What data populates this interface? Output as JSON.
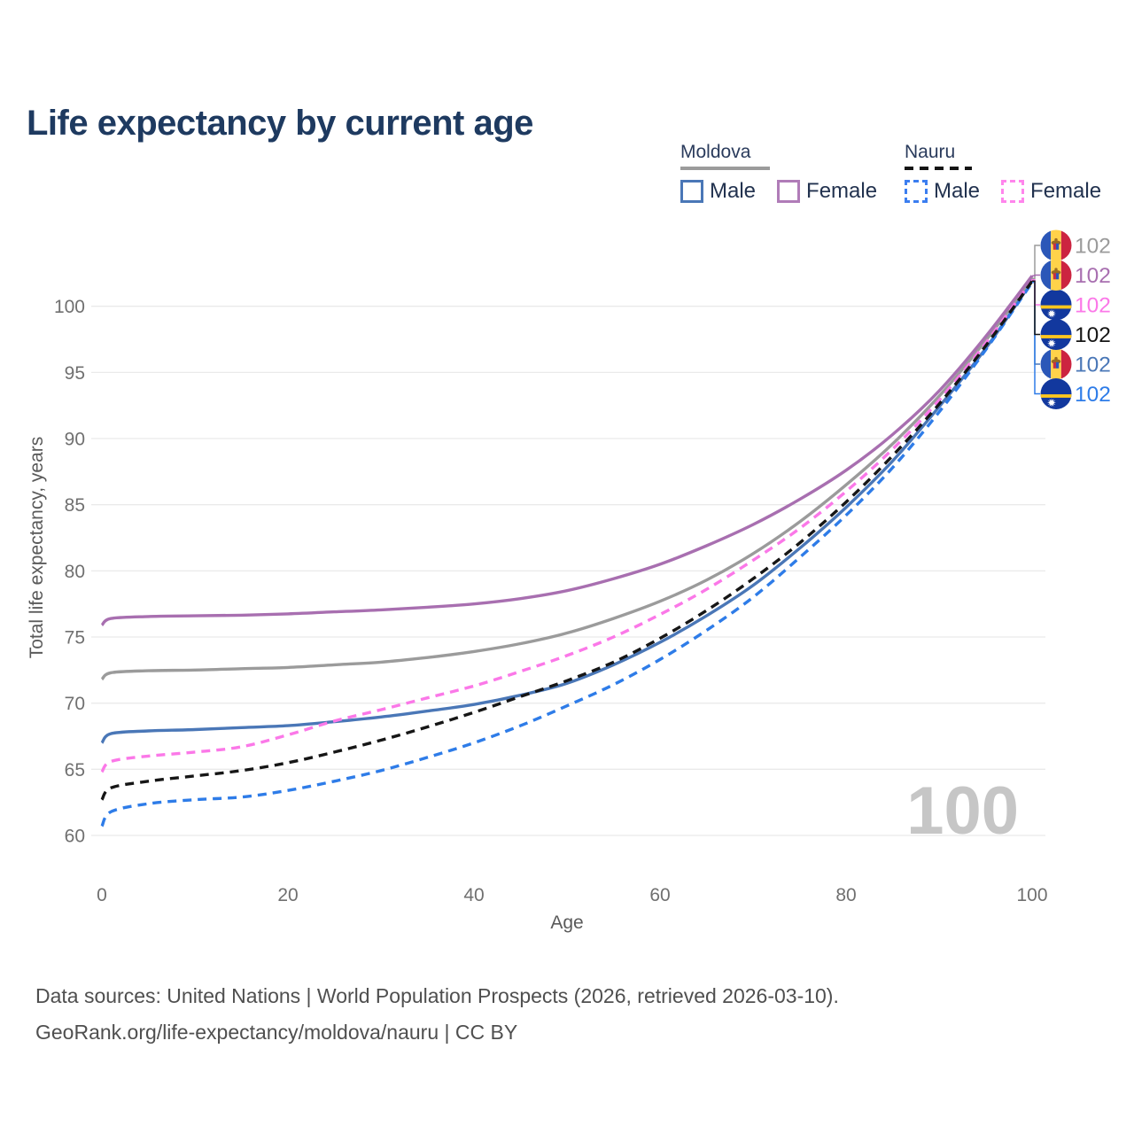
{
  "title": "Life expectancy by current age",
  "legend": {
    "groups": [
      {
        "country": "Moldova",
        "style": "solid",
        "items": [
          {
            "label": "Male",
            "color": "#4a77b7"
          },
          {
            "label": "Female",
            "color": "#b07cb8"
          }
        ]
      },
      {
        "country": "Nauru",
        "style": "dashed",
        "items": [
          {
            "label": "Male",
            "color": "#3b7ef0"
          },
          {
            "label": "Female",
            "color": "#ff85ec"
          }
        ]
      }
    ]
  },
  "footer": {
    "line1": "Data sources: United Nations | World Population Prospects (2026, retrieved 2026-03-10).",
    "line2": "GeoRank.org/life-expectancy/moldova/nauru | CC BY"
  },
  "chart_data": {
    "type": "line",
    "title": "Life expectancy by current age",
    "xlabel": "Age",
    "ylabel": "Total life expectancy, years",
    "x_ticks": [
      0,
      20,
      40,
      60,
      80,
      100
    ],
    "y_ticks": [
      60,
      65,
      70,
      75,
      80,
      85,
      90,
      95,
      100
    ],
    "xlim": [
      0,
      100
    ],
    "ylim": [
      58.5,
      103
    ],
    "grid": "horizontal",
    "legend_position": "top-right",
    "age_counter": "100",
    "x": [
      0,
      1,
      5,
      10,
      15,
      20,
      25,
      30,
      35,
      40,
      45,
      50,
      55,
      60,
      65,
      70,
      75,
      80,
      85,
      90,
      95,
      100
    ],
    "series": [
      {
        "id": "moldova_male",
        "name": "Moldova Male",
        "color": "#4a77b7",
        "dash": "solid",
        "flag": "moldova",
        "end_label": "102",
        "label_row": 4,
        "values": [
          67.0,
          67.7,
          67.9,
          68.0,
          68.15,
          68.3,
          68.6,
          68.95,
          69.4,
          69.9,
          70.6,
          71.5,
          72.9,
          74.6,
          76.6,
          78.9,
          81.7,
          84.8,
          88.3,
          92.4,
          96.8,
          101.9
        ]
      },
      {
        "id": "moldova_total",
        "name": "Moldova",
        "color": "#9b9b9b",
        "dash": "solid",
        "flag": "moldova",
        "end_label": "102",
        "label_row": 0,
        "values": [
          71.8,
          72.3,
          72.45,
          72.5,
          72.6,
          72.7,
          72.9,
          73.1,
          73.45,
          73.9,
          74.5,
          75.3,
          76.4,
          77.7,
          79.3,
          81.3,
          83.7,
          86.5,
          89.6,
          93.2,
          97.4,
          102.1
        ]
      },
      {
        "id": "nauru_male",
        "name": "Nauru Male",
        "color": "#2e7ce8",
        "dash": "dashed",
        "flag": "nauru",
        "end_label": "102",
        "label_row": 5,
        "values": [
          60.7,
          61.8,
          62.4,
          62.7,
          62.9,
          63.4,
          64.1,
          64.9,
          65.9,
          67.0,
          68.3,
          69.8,
          71.4,
          73.3,
          75.5,
          78.0,
          81.0,
          84.2,
          87.8,
          92.0,
          96.7,
          101.8
        ]
      },
      {
        "id": "nauru_female",
        "name": "Nauru Female",
        "color": "#fb78e8",
        "dash": "dashed",
        "flag": "nauru",
        "end_label": "102",
        "label_row": 2,
        "values": [
          64.8,
          65.6,
          66.0,
          66.3,
          66.7,
          67.6,
          68.65,
          69.5,
          70.4,
          71.3,
          72.4,
          73.6,
          75.0,
          76.7,
          78.6,
          80.8,
          83.2,
          86.0,
          89.2,
          92.9,
          97.2,
          102.0
        ]
      },
      {
        "id": "nauru_total",
        "name": "Nauru",
        "color": "#161616",
        "dash": "dashed",
        "flag": "nauru",
        "end_label": "102",
        "label_row": 3,
        "values": [
          62.7,
          63.6,
          64.1,
          64.5,
          64.9,
          65.5,
          66.3,
          67.2,
          68.2,
          69.3,
          70.5,
          71.7,
          73.1,
          74.9,
          77.0,
          79.4,
          82.1,
          85.2,
          88.7,
          92.6,
          97.0,
          101.9
        ]
      },
      {
        "id": "moldova_female",
        "name": "Moldova Female",
        "color": "#a86fb0",
        "dash": "solid",
        "flag": "moldova",
        "end_label": "102",
        "label_row": 1,
        "values": [
          75.9,
          76.4,
          76.55,
          76.6,
          76.65,
          76.75,
          76.9,
          77.05,
          77.25,
          77.5,
          77.9,
          78.5,
          79.4,
          80.5,
          81.9,
          83.5,
          85.4,
          87.6,
          90.3,
          93.6,
          97.7,
          102.3
        ]
      }
    ],
    "flag_colors": {
      "moldova_blue": "#2b57b8",
      "moldova_yellow": "#ffd24a",
      "moldova_red": "#cc2440",
      "nauru_blue": "#12389e",
      "nauru_yellow": "#ffc61e",
      "nauru_star": "#ffffff"
    },
    "style": {
      "gridline": "#eaeaea",
      "tick_text": "#707070",
      "axis_title": "#5a5a5a",
      "watermark": "#c6c6c6"
    }
  }
}
